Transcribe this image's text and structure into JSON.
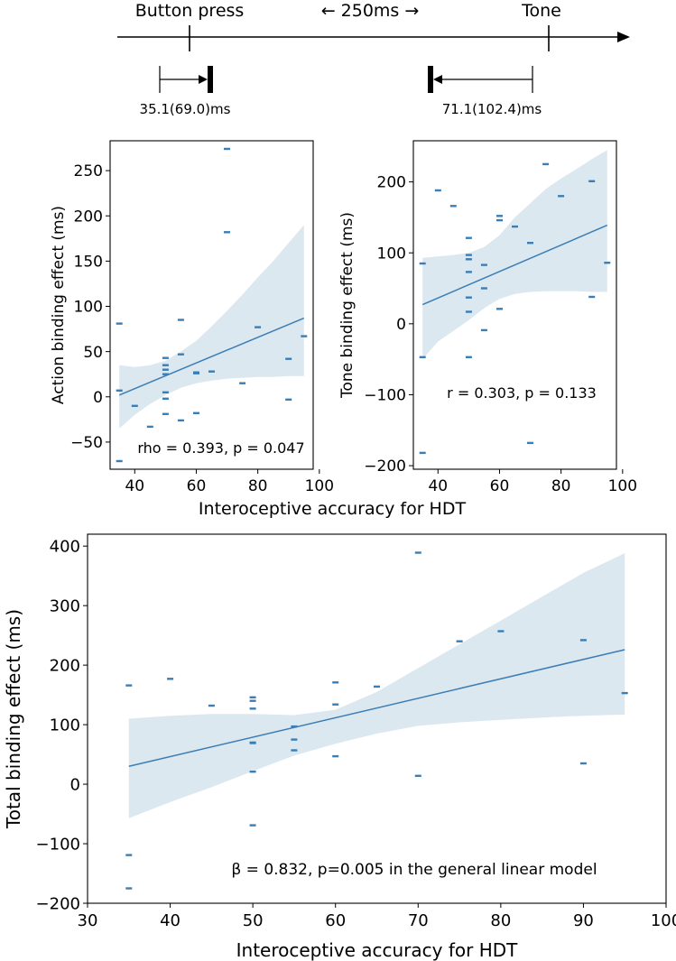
{
  "timeline": {
    "left_label": "Button press",
    "middle_label": "← 250ms →",
    "right_label": "Tone",
    "action_shift_label": "35.1(69.0)ms",
    "tone_shift_label": "71.1(102.4)ms"
  },
  "colors": {
    "points": "#3b7db5",
    "fit_line": "#3b7db5",
    "ci_band": "#dce8f0",
    "axis": "#000000"
  },
  "chart_data": [
    {
      "id": "action",
      "type": "scatter",
      "xlabel": "",
      "ylabel": "Action binding effect (ms)",
      "xlim": [
        32,
        98
      ],
      "ylim": [
        -80,
        283
      ],
      "xticks": [
        40,
        60,
        80,
        100
      ],
      "yticks": [
        -50,
        0,
        50,
        100,
        150,
        200,
        250
      ],
      "annotation": "rho = 0.393, p = 0.047",
      "points": [
        [
          35,
          81
        ],
        [
          35,
          7
        ],
        [
          35,
          -71
        ],
        [
          40,
          -10
        ],
        [
          45,
          -33
        ],
        [
          50,
          43
        ],
        [
          50,
          35
        ],
        [
          50,
          30
        ],
        [
          50,
          25
        ],
        [
          50,
          5
        ],
        [
          50,
          -2
        ],
        [
          50,
          -19
        ],
        [
          55,
          85
        ],
        [
          55,
          47
        ],
        [
          55,
          -26
        ],
        [
          60,
          27
        ],
        [
          60,
          26
        ],
        [
          60,
          -18
        ],
        [
          65,
          28
        ],
        [
          70,
          274
        ],
        [
          70,
          182
        ],
        [
          75,
          15
        ],
        [
          80,
          77
        ],
        [
          90,
          42
        ],
        [
          90,
          -3
        ],
        [
          95,
          67
        ]
      ],
      "fit": {
        "x": [
          35,
          95
        ],
        "y": [
          2,
          87
        ]
      },
      "ci": {
        "x": [
          35,
          40,
          45,
          50,
          55,
          60,
          65,
          70,
          75,
          80,
          85,
          90,
          95
        ],
        "lower": [
          -35,
          -20,
          -8,
          2,
          10,
          15,
          18,
          20,
          21,
          22,
          22,
          23,
          23
        ],
        "upper": [
          35,
          33,
          35,
          40,
          50,
          62,
          78,
          95,
          113,
          132,
          150,
          170,
          190
        ]
      }
    },
    {
      "id": "tone",
      "type": "scatter",
      "xlabel": "",
      "ylabel": "Tone binding effect (ms)",
      "xlim": [
        32,
        98
      ],
      "ylim": [
        -205,
        258
      ],
      "xticks": [
        40,
        60,
        80,
        100
      ],
      "yticks": [
        -200,
        -100,
        0,
        100,
        200
      ],
      "annotation": "r = 0.303, p = 0.133",
      "points": [
        [
          35,
          85
        ],
        [
          35,
          -47
        ],
        [
          35,
          -182
        ],
        [
          40,
          188
        ],
        [
          45,
          166
        ],
        [
          50,
          121
        ],
        [
          50,
          97
        ],
        [
          50,
          91
        ],
        [
          50,
          73
        ],
        [
          50,
          37
        ],
        [
          50,
          17
        ],
        [
          50,
          -47
        ],
        [
          55,
          83
        ],
        [
          55,
          50
        ],
        [
          55,
          -9
        ],
        [
          60,
          152
        ],
        [
          60,
          146
        ],
        [
          60,
          21
        ],
        [
          65,
          137
        ],
        [
          70,
          114
        ],
        [
          70,
          -168
        ],
        [
          75,
          225
        ],
        [
          80,
          180
        ],
        [
          90,
          201
        ],
        [
          90,
          38
        ],
        [
          95,
          86
        ]
      ],
      "fit": {
        "x": [
          35,
          95
        ],
        "y": [
          27,
          139
        ]
      },
      "ci": {
        "x": [
          35,
          40,
          45,
          50,
          55,
          60,
          65,
          70,
          75,
          80,
          85,
          90,
          95
        ],
        "lower": [
          -50,
          -25,
          -10,
          5,
          22,
          35,
          42,
          45,
          46,
          46,
          46,
          45,
          45
        ],
        "upper": [
          93,
          95,
          97,
          100,
          108,
          125,
          150,
          170,
          190,
          205,
          218,
          232,
          245
        ]
      }
    },
    {
      "id": "total",
      "type": "scatter",
      "xlabel": "Interoceptive accuracy for HDT",
      "ylabel": "Total binding effect (ms)",
      "xlim": [
        30,
        100
      ],
      "ylim": [
        -200,
        420
      ],
      "xticks": [
        30,
        40,
        50,
        60,
        70,
        80,
        90,
        100
      ],
      "yticks": [
        -200,
        -100,
        0,
        100,
        200,
        300,
        400
      ],
      "annotation": "β = 0.832, p=0.005 in the general linear model",
      "points": [
        [
          35,
          166
        ],
        [
          35,
          -119
        ],
        [
          35,
          -175
        ],
        [
          40,
          177
        ],
        [
          45,
          132
        ],
        [
          50,
          146
        ],
        [
          50,
          140
        ],
        [
          50,
          127
        ],
        [
          50,
          70
        ],
        [
          50,
          69
        ],
        [
          50,
          21
        ],
        [
          50,
          -69
        ],
        [
          55,
          97
        ],
        [
          55,
          75
        ],
        [
          55,
          57
        ],
        [
          60,
          171
        ],
        [
          60,
          134
        ],
        [
          60,
          47
        ],
        [
          65,
          164
        ],
        [
          70,
          389
        ],
        [
          70,
          14
        ],
        [
          75,
          240
        ],
        [
          80,
          257
        ],
        [
          90,
          242
        ],
        [
          90,
          35
        ],
        [
          95,
          153
        ]
      ],
      "fit": {
        "x": [
          35,
          95
        ],
        "y": [
          30,
          226
        ]
      },
      "ci": {
        "x": [
          35,
          40,
          45,
          50,
          55,
          60,
          65,
          70,
          75,
          80,
          85,
          90,
          95
        ],
        "lower": [
          -57,
          -30,
          -5,
          22,
          48,
          68,
          85,
          98,
          104,
          108,
          112,
          115,
          117
        ],
        "upper": [
          110,
          115,
          118,
          118,
          116,
          125,
          155,
          195,
          235,
          275,
          315,
          355,
          388
        ]
      }
    }
  ]
}
